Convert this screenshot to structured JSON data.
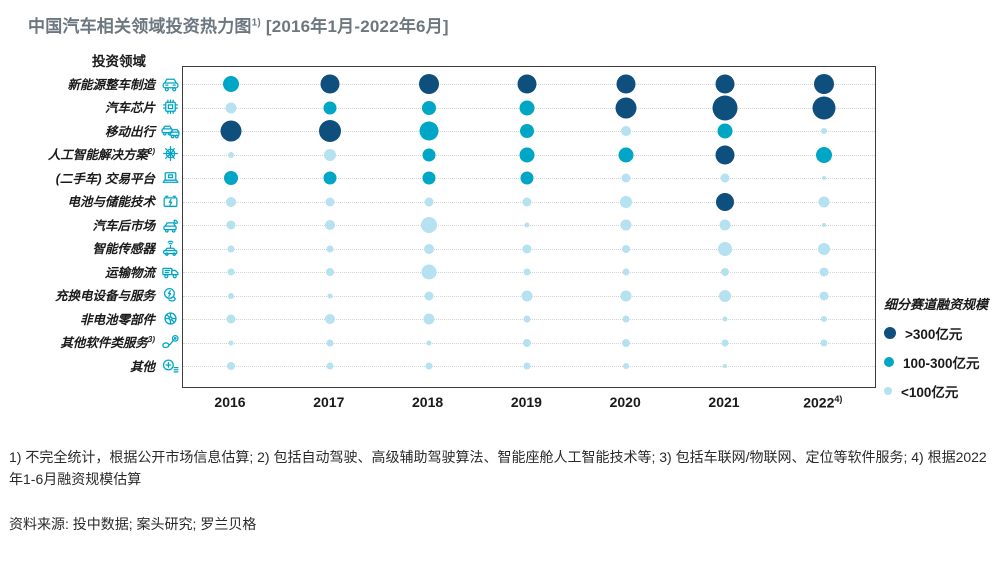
{
  "title": {
    "main": "中国汽车相关领域投资热力图",
    "sup": "1)",
    "period": " [2016年1月-2022年6月]"
  },
  "row_header": "投资领域",
  "colors": {
    "dark": "#0f4f7d",
    "teal": "#00a6c6",
    "light": "#b6e1f0",
    "title": "#6d7780",
    "grid": "#d4d4d4",
    "frame": "#3c3c3c"
  },
  "legend": {
    "title": "细分赛道融资规模",
    "items": [
      {
        "label": ">300亿元",
        "tier": "dark"
      },
      {
        "label": "100-300亿元",
        "tier": "teal"
      },
      {
        "label": "<100亿元",
        "tier": "light"
      }
    ]
  },
  "footnote": "1) 不完全统计，根据公开市场信息估算; 2) 包括自动驾驶、高级辅助驾驶算法、智能座舱人工智能技术等; 3) 包括车联网/物联网、定位等软件服务; 4) 根据2022年1-6月融资规模估算",
  "source": "资料来源: 投中数据; 案头研究; 罗兰贝格",
  "chart_data": {
    "type": "heatmap",
    "title": "中国汽车相关领域投资热力图 [2016年1月-2022年6月]",
    "xlabel": "",
    "ylabel": "投资领域",
    "legend_position": "right",
    "tier_meaning": {
      "dark": ">300亿元",
      "teal": "100-300亿元",
      "light": "<100亿元"
    },
    "x": [
      {
        "label": "2016",
        "sup": ""
      },
      {
        "label": "2017",
        "sup": ""
      },
      {
        "label": "2018",
        "sup": ""
      },
      {
        "label": "2019",
        "sup": ""
      },
      {
        "label": "2020",
        "sup": ""
      },
      {
        "label": "2021",
        "sup": ""
      },
      {
        "label": "2022",
        "sup": "4)"
      }
    ],
    "rows": [
      {
        "label": "新能源整车制造",
        "sup": "",
        "icon": "ev-car-icon",
        "cells": [
          {
            "t": "teal",
            "d": 16
          },
          {
            "t": "dark",
            "d": 19
          },
          {
            "t": "dark",
            "d": 20
          },
          {
            "t": "dark",
            "d": 19
          },
          {
            "t": "dark",
            "d": 19
          },
          {
            "t": "dark",
            "d": 19
          },
          {
            "t": "dark",
            "d": 20
          }
        ]
      },
      {
        "label": "汽车芯片",
        "sup": "",
        "icon": "chip-icon",
        "cells": [
          {
            "t": "light",
            "d": 11
          },
          {
            "t": "teal",
            "d": 13
          },
          {
            "t": "teal",
            "d": 14
          },
          {
            "t": "teal",
            "d": 15
          },
          {
            "t": "dark",
            "d": 21
          },
          {
            "t": "dark",
            "d": 25
          },
          {
            "t": "dark",
            "d": 23
          }
        ]
      },
      {
        "label": "移动出行",
        "sup": "",
        "icon": "mobility-cars-icon",
        "cells": [
          {
            "t": "dark",
            "d": 21
          },
          {
            "t": "dark",
            "d": 22
          },
          {
            "t": "teal",
            "d": 19
          },
          {
            "t": "teal",
            "d": 14
          },
          {
            "t": "light",
            "d": 10
          },
          {
            "t": "teal",
            "d": 15
          },
          {
            "t": "light",
            "d": 6
          }
        ]
      },
      {
        "label": "人工智能解决方案",
        "sup": "2)",
        "icon": "ai-gear-icon",
        "cells": [
          {
            "t": "light",
            "d": 6
          },
          {
            "t": "light",
            "d": 12
          },
          {
            "t": "teal",
            "d": 13
          },
          {
            "t": "teal",
            "d": 15
          },
          {
            "t": "teal",
            "d": 15
          },
          {
            "t": "dark",
            "d": 19
          },
          {
            "t": "teal",
            "d": 16
          }
        ]
      },
      {
        "label": "(二手车) 交易平台",
        "sup": "",
        "icon": "laptop-trade-icon",
        "cells": [
          {
            "t": "teal",
            "d": 14
          },
          {
            "t": "teal",
            "d": 13
          },
          {
            "t": "teal",
            "d": 13
          },
          {
            "t": "teal",
            "d": 13
          },
          {
            "t": "light",
            "d": 9
          },
          {
            "t": "light",
            "d": 9
          },
          {
            "t": "light",
            "d": 4
          }
        ]
      },
      {
        "label": "电池与储能技术",
        "sup": "",
        "icon": "battery-icon",
        "cells": [
          {
            "t": "light",
            "d": 10
          },
          {
            "t": "light",
            "d": 9
          },
          {
            "t": "light",
            "d": 9
          },
          {
            "t": "light",
            "d": 9
          },
          {
            "t": "light",
            "d": 12
          },
          {
            "t": "dark",
            "d": 18
          },
          {
            "t": "light",
            "d": 11
          }
        ]
      },
      {
        "label": "汽车后市场",
        "sup": "",
        "icon": "car-repair-icon",
        "cells": [
          {
            "t": "light",
            "d": 9
          },
          {
            "t": "light",
            "d": 10
          },
          {
            "t": "light",
            "d": 16
          },
          {
            "t": "light",
            "d": 5
          },
          {
            "t": "light",
            "d": 11
          },
          {
            "t": "light",
            "d": 11
          },
          {
            "t": "light",
            "d": 4
          }
        ]
      },
      {
        "label": "智能传感器",
        "sup": "",
        "icon": "sensor-car-icon",
        "cells": [
          {
            "t": "light",
            "d": 7
          },
          {
            "t": "light",
            "d": 7
          },
          {
            "t": "light",
            "d": 10
          },
          {
            "t": "light",
            "d": 9
          },
          {
            "t": "light",
            "d": 8
          },
          {
            "t": "light",
            "d": 14
          },
          {
            "t": "light",
            "d": 12
          }
        ]
      },
      {
        "label": "运输物流",
        "sup": "",
        "icon": "truck-icon",
        "cells": [
          {
            "t": "light",
            "d": 7
          },
          {
            "t": "light",
            "d": 8
          },
          {
            "t": "light",
            "d": 15
          },
          {
            "t": "light",
            "d": 7
          },
          {
            "t": "light",
            "d": 7
          },
          {
            "t": "light",
            "d": 8
          },
          {
            "t": "light",
            "d": 9
          }
        ]
      },
      {
        "label": "充换电设备与服务",
        "sup": "",
        "icon": "charging-icon",
        "cells": [
          {
            "t": "light",
            "d": 6
          },
          {
            "t": "light",
            "d": 5
          },
          {
            "t": "light",
            "d": 9
          },
          {
            "t": "light",
            "d": 11
          },
          {
            "t": "light",
            "d": 11
          },
          {
            "t": "light",
            "d": 12
          },
          {
            "t": "light",
            "d": 9
          }
        ]
      },
      {
        "label": "非电池零部件",
        "sup": "",
        "icon": "wheel-icon",
        "cells": [
          {
            "t": "light",
            "d": 9
          },
          {
            "t": "light",
            "d": 10
          },
          {
            "t": "light",
            "d": 11
          },
          {
            "t": "light",
            "d": 7
          },
          {
            "t": "light",
            "d": 7
          },
          {
            "t": "light",
            "d": 5
          },
          {
            "t": "light",
            "d": 6
          }
        ]
      },
      {
        "label": "其他软件类服务",
        "sup": "3)",
        "icon": "software-pin-icon",
        "cells": [
          {
            "t": "light",
            "d": 5
          },
          {
            "t": "light",
            "d": 7
          },
          {
            "t": "light",
            "d": 5
          },
          {
            "t": "light",
            "d": 8
          },
          {
            "t": "light",
            "d": 8
          },
          {
            "t": "light",
            "d": 7
          },
          {
            "t": "light",
            "d": 7
          }
        ]
      },
      {
        "label": "其他",
        "sup": "",
        "icon": "other-icon",
        "cells": [
          {
            "t": "light",
            "d": 8
          },
          {
            "t": "light",
            "d": 7
          },
          {
            "t": "light",
            "d": 7
          },
          {
            "t": "light",
            "d": 7
          },
          {
            "t": "light",
            "d": 6
          },
          {
            "t": "light",
            "d": 4
          },
          null
        ]
      }
    ]
  }
}
